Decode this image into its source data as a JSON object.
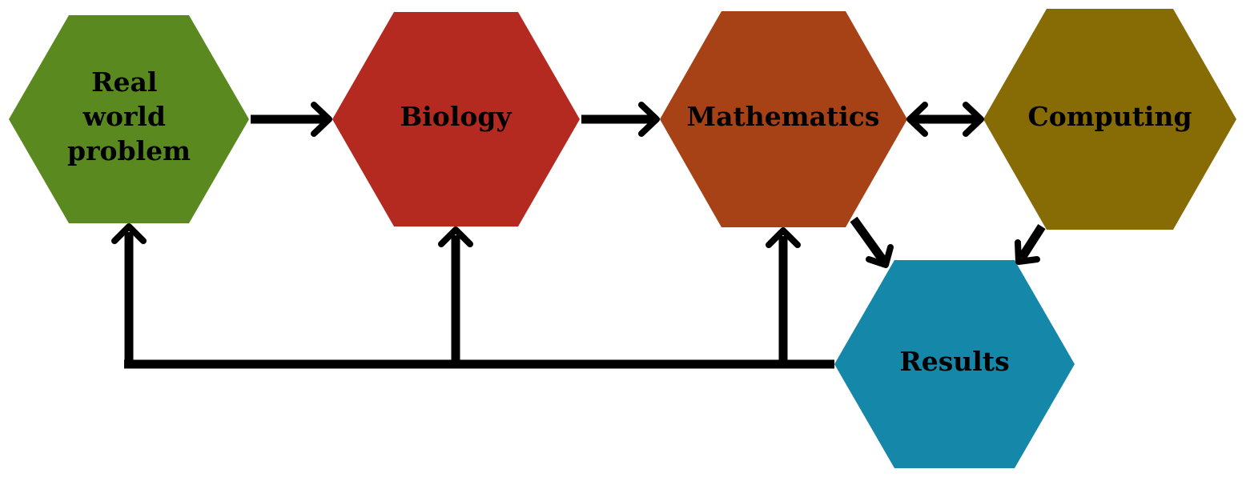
{
  "diagram": {
    "nodes": {
      "real_world_problem": {
        "lines": [
          "Real",
          "world",
          "problem"
        ],
        "color": "#5a8a1f"
      },
      "biology": {
        "lines": [
          "Biology"
        ],
        "color": "#b52a20"
      },
      "mathematics": {
        "lines": [
          "Mathematics"
        ],
        "color": "#a64215"
      },
      "computing": {
        "lines": [
          "Computing"
        ],
        "color": "#876b05"
      },
      "results": {
        "lines": [
          "Results"
        ],
        "color": "#1587a8"
      }
    },
    "edges": [
      {
        "from": "real_world_problem",
        "to": "biology",
        "direction": "forward"
      },
      {
        "from": "biology",
        "to": "mathematics",
        "direction": "forward"
      },
      {
        "from": "mathematics",
        "to": "computing",
        "direction": "both"
      },
      {
        "from": "mathematics",
        "to": "results",
        "direction": "forward"
      },
      {
        "from": "computing",
        "to": "results",
        "direction": "forward"
      },
      {
        "from": "results",
        "to": "mathematics",
        "direction": "forward"
      },
      {
        "from": "results",
        "to": "biology",
        "direction": "forward"
      },
      {
        "from": "results",
        "to": "real_world_problem",
        "direction": "forward"
      }
    ],
    "arrow_color": "#000000"
  }
}
